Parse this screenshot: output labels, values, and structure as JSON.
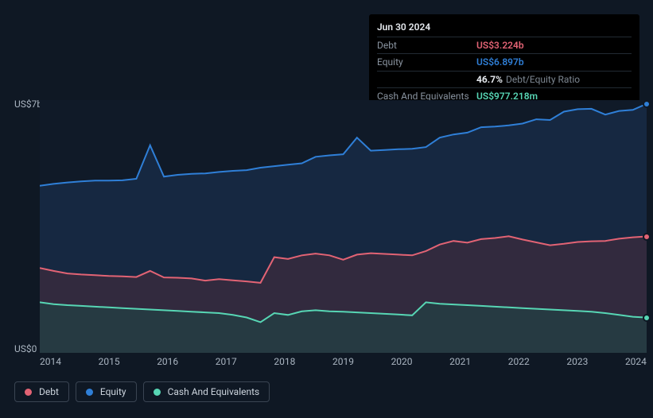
{
  "chart": {
    "type": "area",
    "background_color": "#0f1824",
    "plot_background_color": "#101a28",
    "grid_color": "#1b2736",
    "xlabels": [
      "2014",
      "2015",
      "2016",
      "2017",
      "2018",
      "2019",
      "2020",
      "2021",
      "2022",
      "2023",
      "2024"
    ],
    "ylabels": [
      {
        "value": 0,
        "label": "US$0"
      },
      {
        "value": 7000,
        "label": "US$7b"
      }
    ],
    "ylim": [
      0,
      7000
    ],
    "series": {
      "equity": {
        "name": "Equity",
        "color": "#2f7fd7",
        "fill": "#1b3556",
        "fill_opacity": 0.55,
        "line_width": 2,
        "values": [
          4630,
          4680,
          4720,
          4750,
          4770,
          4770,
          4780,
          4820,
          5750,
          4880,
          4930,
          4960,
          4970,
          5010,
          5040,
          5060,
          5130,
          5170,
          5210,
          5250,
          5430,
          5470,
          5500,
          5960,
          5600,
          5620,
          5640,
          5650,
          5700,
          5960,
          6050,
          6100,
          6250,
          6270,
          6300,
          6350,
          6470,
          6450,
          6680,
          6750,
          6760,
          6600,
          6700,
          6730,
          6897
        ]
      },
      "debt": {
        "name": "Debt",
        "color": "#e26374",
        "fill": "#4a2b3c",
        "fill_opacity": 0.55,
        "line_width": 2,
        "values": [
          2350,
          2270,
          2200,
          2170,
          2150,
          2130,
          2120,
          2100,
          2270,
          2090,
          2080,
          2060,
          2000,
          2040,
          2010,
          1980,
          1940,
          2650,
          2600,
          2700,
          2750,
          2700,
          2580,
          2720,
          2760,
          2740,
          2720,
          2700,
          2820,
          3000,
          3100,
          3050,
          3150,
          3180,
          3230,
          3140,
          3060,
          2980,
          3020,
          3070,
          3090,
          3100,
          3160,
          3200,
          3224
        ]
      },
      "cash": {
        "name": "Cash And Equivalents",
        "color": "#57d6b4",
        "fill": "#1e4746",
        "fill_opacity": 0.55,
        "line_width": 2,
        "values": [
          1400,
          1350,
          1320,
          1300,
          1280,
          1260,
          1240,
          1220,
          1200,
          1180,
          1160,
          1140,
          1120,
          1100,
          1050,
          980,
          850,
          1100,
          1050,
          1150,
          1180,
          1150,
          1140,
          1120,
          1100,
          1080,
          1060,
          1040,
          1400,
          1360,
          1340,
          1320,
          1300,
          1280,
          1260,
          1240,
          1220,
          1200,
          1180,
          1160,
          1140,
          1100,
          1050,
          1000,
          977
        ]
      }
    },
    "end_markers": {
      "equity": 6897,
      "debt": 3224,
      "cash": 977
    }
  },
  "tooltip": {
    "date": "Jun 30 2024",
    "rows": [
      {
        "key": "debt",
        "label": "Debt",
        "value": "US$3.224b",
        "color": "#e26374"
      },
      {
        "key": "equity",
        "label": "Equity",
        "value": "US$6.897b",
        "color": "#2f7fd7"
      },
      {
        "key": "ratio",
        "label": "",
        "pct": "46.7%",
        "ratio_label": "Debt/Equity Ratio"
      },
      {
        "key": "cash",
        "label": "Cash And Equivalents",
        "value": "US$977.218m",
        "color": "#57d6b4"
      }
    ]
  },
  "legend": [
    {
      "key": "debt",
      "label": "Debt",
      "color": "#e26374"
    },
    {
      "key": "equity",
      "label": "Equity",
      "color": "#2f7fd7"
    },
    {
      "key": "cash",
      "label": "Cash And Equivalents",
      "color": "#57d6b4"
    }
  ]
}
